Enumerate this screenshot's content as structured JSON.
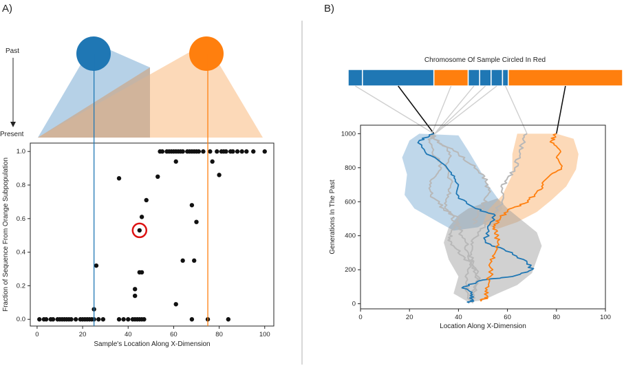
{
  "panel_a": {
    "label": "A)",
    "timeline_top": "Past",
    "timeline_bottom": "Present"
  },
  "panel_b": {
    "label": "B)",
    "chromosome_title": "Chromosome Of Sample Circled In Red"
  },
  "colors": {
    "blue": "#1f77b4",
    "orange": "#ff7f0e",
    "light_blue": "#a9c9e3",
    "light_orange": "#fbd2ac",
    "gray": "#9a9a9a",
    "circle": "#dd1111"
  },
  "chart_data": [
    {
      "type": "scatter",
      "title": "",
      "xlabel": "Sample's Location Along X-Dimension",
      "ylabel": "Fraction of Sequence From Orange Subpopulation",
      "xlim": [
        -3,
        104
      ],
      "ylim": [
        -0.04,
        1.05
      ],
      "xticks": [
        0,
        20,
        40,
        60,
        80,
        100
      ],
      "yticks": [
        0.0,
        0.2,
        0.4,
        0.6,
        0.8,
        1.0
      ],
      "ytick_labels": [
        "0.0",
        "0.2",
        "0.4",
        "0.6",
        "0.8",
        "1.0"
      ],
      "vlines": [
        {
          "x": 25,
          "color": "blue"
        },
        {
          "x": 75,
          "color": "orange"
        }
      ],
      "highlighted_point": {
        "x": 45,
        "y": 0.53
      },
      "points": [
        [
          1,
          0
        ],
        [
          3,
          0
        ],
        [
          4,
          0
        ],
        [
          6,
          0
        ],
        [
          7,
          0
        ],
        [
          9,
          0
        ],
        [
          10,
          0
        ],
        [
          11,
          0
        ],
        [
          12,
          0
        ],
        [
          13,
          0
        ],
        [
          14,
          0
        ],
        [
          15,
          0
        ],
        [
          17,
          0
        ],
        [
          19,
          0
        ],
        [
          20,
          0
        ],
        [
          21,
          0
        ],
        [
          22,
          0
        ],
        [
          23,
          0
        ],
        [
          24,
          0
        ],
        [
          25,
          0
        ],
        [
          25,
          0.06
        ],
        [
          26,
          0.32
        ],
        [
          27,
          0
        ],
        [
          29,
          0
        ],
        [
          36,
          0
        ],
        [
          38,
          0
        ],
        [
          40,
          0
        ],
        [
          42,
          0
        ],
        [
          43,
          0
        ],
        [
          44,
          0
        ],
        [
          45,
          0
        ],
        [
          46,
          0
        ],
        [
          47,
          0
        ],
        [
          36,
          0.84
        ],
        [
          43,
          0.14
        ],
        [
          43,
          0.18
        ],
        [
          45,
          0.28
        ],
        [
          46,
          0.28
        ],
        [
          45,
          0.53
        ],
        [
          46,
          0.61
        ],
        [
          48,
          0.71
        ],
        [
          53,
          0.85
        ],
        [
          54,
          1
        ],
        [
          55,
          1
        ],
        [
          57,
          1
        ],
        [
          58,
          1
        ],
        [
          59,
          1
        ],
        [
          60,
          1
        ],
        [
          61,
          0.94
        ],
        [
          61,
          1
        ],
        [
          62,
          1
        ],
        [
          63,
          1
        ],
        [
          64,
          1
        ],
        [
          66,
          1
        ],
        [
          67,
          1
        ],
        [
          68,
          1
        ],
        [
          69,
          1
        ],
        [
          70,
          1
        ],
        [
          71,
          1
        ],
        [
          73,
          1
        ],
        [
          76,
          1
        ],
        [
          77,
          0.94
        ],
        [
          79,
          1
        ],
        [
          80,
          0.86
        ],
        [
          81,
          1
        ],
        [
          82,
          1
        ],
        [
          83,
          1
        ],
        [
          85,
          1
        ],
        [
          86,
          1
        ],
        [
          88,
          1
        ],
        [
          90,
          1
        ],
        [
          92,
          1
        ],
        [
          95,
          1
        ],
        [
          100,
          1
        ],
        [
          61,
          0.09
        ],
        [
          64,
          0.35
        ],
        [
          68,
          0.68
        ],
        [
          69,
          0.35
        ],
        [
          70,
          0.58
        ],
        [
          68,
          0
        ],
        [
          75,
          0
        ],
        [
          84,
          0
        ]
      ]
    },
    {
      "type": "line",
      "title": "",
      "xlabel": "Location Along X-Dimension",
      "ylabel": "Generations In The Past",
      "xlim": [
        0,
        100
      ],
      "ylim": [
        -30,
        1050
      ],
      "xticks": [
        0,
        20,
        40,
        60,
        80,
        100
      ],
      "yticks": [
        0,
        200,
        400,
        600,
        800,
        1000
      ],
      "series": [
        {
          "color": "blue",
          "points": [
            [
              30,
              1000
            ],
            [
              24,
              960
            ],
            [
              27,
              880
            ],
            [
              34,
              820
            ],
            [
              37,
              760
            ],
            [
              40,
              700
            ],
            [
              40,
              620
            ],
            [
              47,
              560
            ],
            [
              55,
              520
            ],
            [
              52,
              440
            ],
            [
              51,
              360
            ],
            [
              62,
              300
            ],
            [
              68,
              240
            ],
            [
              70,
              200
            ],
            [
              62,
              160
            ],
            [
              50,
              140
            ],
            [
              42,
              100
            ],
            [
              45,
              60
            ],
            [
              46,
              20
            ],
            [
              44,
              5
            ]
          ]
        },
        {
          "color": "orange",
          "points": [
            [
              80,
              1000
            ],
            [
              78,
              960
            ],
            [
              81,
              910
            ],
            [
              80,
              860
            ],
            [
              82,
              800
            ],
            [
              77,
              750
            ],
            [
              74,
              690
            ],
            [
              71,
              640
            ],
            [
              67,
              590
            ],
            [
              60,
              550
            ],
            [
              57,
              500
            ],
            [
              55,
              460
            ],
            [
              55,
              420
            ],
            [
              56,
              370
            ],
            [
              55,
              300
            ],
            [
              53,
              240
            ],
            [
              53,
              160
            ],
            [
              51,
              90
            ],
            [
              52,
              40
            ],
            [
              49,
              15
            ]
          ]
        },
        {
          "color": "gray",
          "points": [
            [
              30,
              1000
            ],
            [
              28,
              950
            ],
            [
              31,
              860
            ],
            [
              33,
              800
            ],
            [
              30,
              740
            ],
            [
              28,
              680
            ],
            [
              30,
              620
            ],
            [
              34,
              560
            ],
            [
              40,
              500
            ],
            [
              38,
              440
            ],
            [
              36,
              390
            ],
            [
              38,
              340
            ],
            [
              42,
              280
            ],
            [
              46,
              220
            ],
            [
              48,
              160
            ],
            [
              47,
              100
            ],
            [
              46,
              40
            ],
            [
              46,
              5
            ]
          ]
        },
        {
          "color": "gray",
          "points": [
            [
              29,
              990
            ],
            [
              34,
              930
            ],
            [
              37,
              870
            ],
            [
              35,
              800
            ],
            [
              37,
              730
            ],
            [
              36,
              660
            ],
            [
              35,
              600
            ],
            [
              36,
              540
            ],
            [
              39,
              480
            ],
            [
              41,
              420
            ],
            [
              43,
              360
            ],
            [
              44,
              300
            ],
            [
              45,
              240
            ],
            [
              44,
              180
            ],
            [
              43,
              120
            ],
            [
              44,
              60
            ],
            [
              44,
              5
            ]
          ]
        },
        {
          "color": "gray",
          "points": [
            [
              68,
              1000
            ],
            [
              66,
              940
            ],
            [
              65,
              870
            ],
            [
              63,
              800
            ],
            [
              60,
              740
            ],
            [
              58,
              680
            ],
            [
              58,
              610
            ],
            [
              55,
              540
            ],
            [
              51,
              470
            ],
            [
              48,
              410
            ],
            [
              46,
              360
            ],
            [
              45,
              300
            ],
            [
              46,
              240
            ],
            [
              47,
              180
            ],
            [
              47,
              110
            ],
            [
              45,
              40
            ]
          ]
        },
        {
          "color": "gray",
          "points": [
            [
              29,
              995
            ],
            [
              33,
              940
            ],
            [
              40,
              880
            ],
            [
              45,
              820
            ],
            [
              50,
              760
            ],
            [
              52,
              700
            ],
            [
              52,
              640
            ],
            [
              50,
              580
            ],
            [
              48,
              520
            ],
            [
              46,
              470
            ]
          ]
        }
      ],
      "chromosome_segments": [
        {
          "color": "blue",
          "length": 1
        },
        {
          "color": "blue",
          "length": 5
        },
        {
          "color": "orange",
          "length": 2.4
        },
        {
          "color": "blue",
          "length": 0.8
        },
        {
          "color": "blue",
          "length": 0.8
        },
        {
          "color": "blue",
          "length": 0.8
        },
        {
          "color": "blue",
          "length": 0.4
        },
        {
          "color": "orange",
          "length": 8
        }
      ]
    }
  ]
}
